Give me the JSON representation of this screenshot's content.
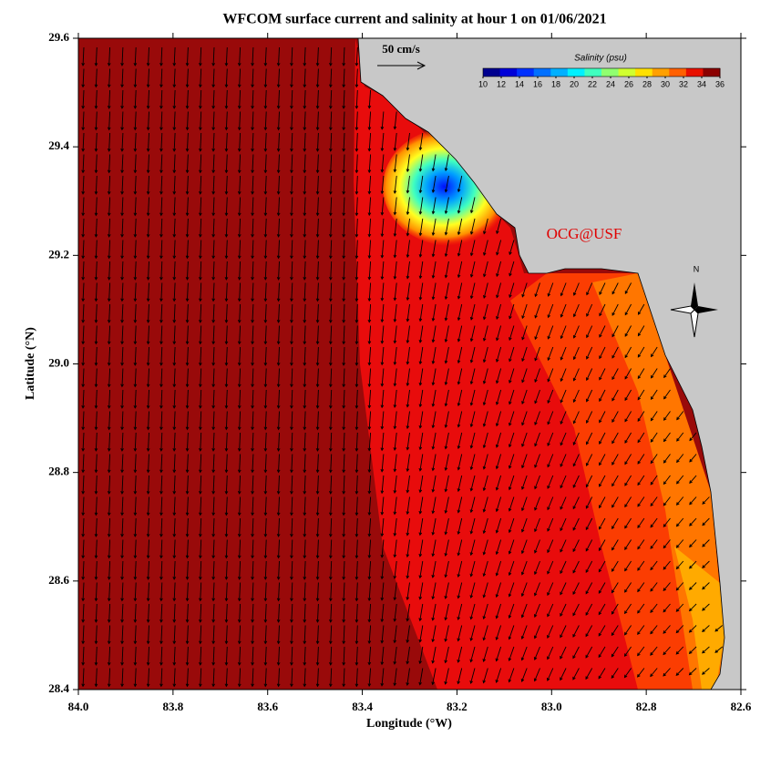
{
  "chart_data": {
    "type": "map",
    "title": "WFCOM surface current and salinity at hour 1 on 01/06/2021",
    "x_label": "Longitude (°W)",
    "y_label": "Latitude (°N)",
    "xlim": [
      84.0,
      82.6
    ],
    "xticks": [
      {
        "value": 84.0,
        "label": "84.0"
      },
      83.8,
      83.6,
      83.4,
      83.2,
      {
        "value": 83.0,
        "label": "83.0"
      },
      82.8,
      82.6
    ],
    "ylim": [
      28.4,
      29.6
    ],
    "yticks": [
      28.4,
      28.6,
      28.8,
      {
        "value": 29.0,
        "label": "29.0"
      },
      29.2,
      29.4,
      29.6
    ],
    "scale_label": "50 cm/s",
    "colorbar_title": "Salinity (psu)",
    "clim": [
      10,
      36
    ],
    "cticks": [
      10,
      12,
      14,
      16,
      18,
      20,
      22,
      24,
      26,
      28,
      30,
      32,
      34,
      36
    ],
    "colormap": [
      "#00008f",
      "#0000d8",
      "#0030ff",
      "#0070ff",
      "#00b0ff",
      "#00f0ff",
      "#40ffbf",
      "#90ff70",
      "#d0ff30",
      "#ffe000",
      "#ffa000",
      "#ff6000",
      "#e81000",
      "#8b0000"
    ],
    "watermark": "OCG@USF",
    "compass_label": "N"
  }
}
